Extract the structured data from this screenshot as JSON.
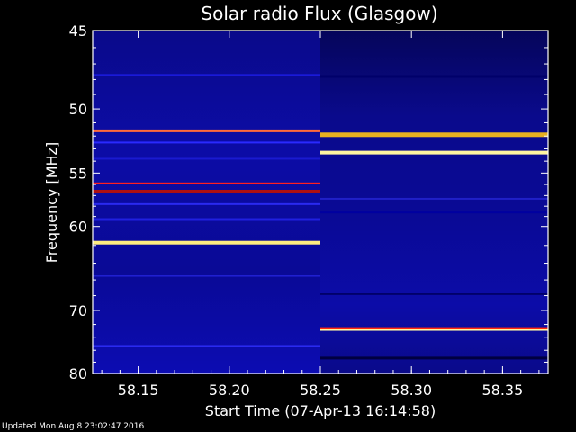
{
  "chart_data": {
    "type": "heatmap",
    "title": "Solar radio Flux (Glasgow)",
    "xlabel": "Start Time (07-Apr-13 16:14:58)",
    "ylabel": "Frequency [MHz]",
    "xlim": [
      58.125,
      58.375
    ],
    "ylim": [
      45,
      80
    ],
    "y_inverted": true,
    "xticks": [
      "58.15",
      "58.20",
      "58.25",
      "58.30",
      "58.35"
    ],
    "yticks": [
      "45",
      "50",
      "55",
      "60",
      "70",
      "80"
    ],
    "ytick_values": [
      45,
      50,
      55,
      60,
      70,
      80
    ],
    "yscale": "reciprocal",
    "background_color": "#0a0aa0",
    "segments": [
      {
        "x_range": [
          58.125,
          58.25
        ],
        "lines": [
          {
            "freq": 47.7,
            "color": "#1a1ad8",
            "thick": 2
          },
          {
            "freq": 51.6,
            "color": "#ff6a3a",
            "thick": 3
          },
          {
            "freq": 52.5,
            "color": "#2a2aff",
            "thick": 2
          },
          {
            "freq": 53.8,
            "color": "#1a1ad0",
            "thick": 2
          },
          {
            "freq": 55.9,
            "color": "#ff2020",
            "thick": 2
          },
          {
            "freq": 56.6,
            "color": "#b01010",
            "thick": 3
          },
          {
            "freq": 57.8,
            "color": "#2a2af0",
            "thick": 2
          },
          {
            "freq": 59.3,
            "color": "#2020e0",
            "thick": 3
          },
          {
            "freq": 61.7,
            "color": "#ffee80",
            "thick": 4
          },
          {
            "freq": 65.5,
            "color": "#2020d0",
            "thick": 2
          },
          {
            "freq": 75.3,
            "color": "#2a2af0",
            "thick": 2
          }
        ]
      },
      {
        "x_range": [
          58.25,
          58.375
        ],
        "lines": [
          {
            "freq": 47.8,
            "color": "#00006a",
            "thick": 3
          },
          {
            "freq": 51.9,
            "color": "#e8b020",
            "thick": 5
          },
          {
            "freq": 53.3,
            "color": "#fff6a0",
            "thick": 4
          },
          {
            "freq": 57.3,
            "color": "#2020c8",
            "thick": 2
          },
          {
            "freq": 58.6,
            "color": "#0000a0",
            "thick": 2
          },
          {
            "freq": 67.8,
            "color": "#00006a",
            "thick": 2
          },
          {
            "freq": 72.6,
            "color": "#ff2a10",
            "thick": 3
          },
          {
            "freq": 72.8,
            "color": "#fff6a0",
            "thick": 2
          },
          {
            "freq": 77.3,
            "color": "#000040",
            "thick": 3
          }
        ]
      }
    ]
  },
  "footer": "Updated Mon Aug  8 23:02:47 2016"
}
